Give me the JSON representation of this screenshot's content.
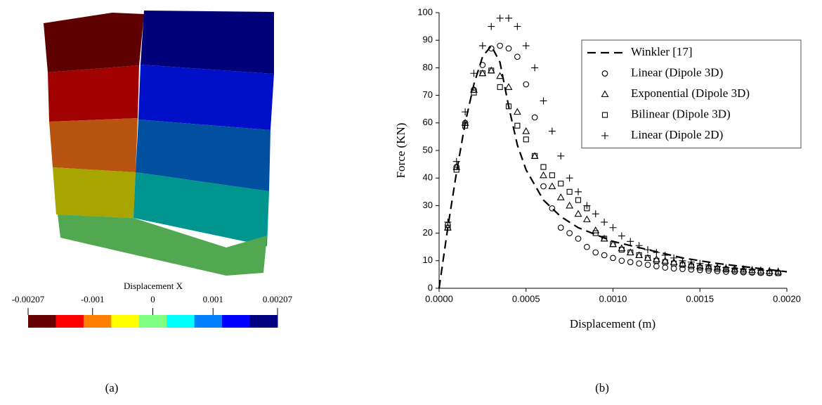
{
  "panel_a": {
    "colorbar": {
      "title": "Displacement X",
      "lim": [
        -0.00207,
        0.00207
      ],
      "ticks": [
        -0.00207,
        -0.001,
        0,
        0.001,
        0.00207
      ],
      "colors": [
        "#640000",
        "#ff0000",
        "#ff8000",
        "#ffff00",
        "#80ff80",
        "#00ffff",
        "#0080ff",
        "#0000ff",
        "#000080"
      ]
    }
  },
  "captions": [
    "(a)",
    "(b)"
  ],
  "chart_data": {
    "type": "scatter",
    "xlabel": "Displacement (m)",
    "ylabel": "Force (KN)",
    "xlim": [
      0,
      0.002
    ],
    "ylim": [
      0,
      100
    ],
    "xticks": [
      {
        "value": 0,
        "label": "0.0000"
      },
      {
        "value": 0.0005,
        "label": "0.0005"
      },
      {
        "value": 0.001,
        "label": "0.0010"
      },
      {
        "value": 0.0015,
        "label": "0.0015"
      },
      {
        "value": 0.002,
        "label": "0.0020"
      }
    ],
    "yticks": [
      0,
      10,
      20,
      30,
      40,
      50,
      60,
      70,
      80,
      90,
      100
    ],
    "legend": "upper right",
    "x": [
      5e-05,
      0.0001,
      0.00015,
      0.0002,
      0.00025,
      0.0003,
      0.00035,
      0.0004,
      0.00045,
      0.0005,
      0.00055,
      0.0006,
      0.00065,
      0.0007,
      0.00075,
      0.0008,
      0.00085,
      0.0009,
      0.00095,
      0.001,
      0.00105,
      0.0011,
      0.00115,
      0.0012,
      0.00125,
      0.0013,
      0.00135,
      0.0014,
      0.00145,
      0.0015,
      0.00155,
      0.0016,
      0.00165,
      0.0017,
      0.00175,
      0.0018,
      0.00185,
      0.0019,
      0.00195
    ],
    "series": [
      {
        "name": "Winkler [17]",
        "color": "#000000",
        "marker": "dashed-line",
        "x": [
          0,
          5e-05,
          0.0001,
          0.00015,
          0.0002,
          0.00025,
          0.0003,
          0.00035,
          0.0004,
          0.00045,
          0.0005,
          0.0006,
          0.0007,
          0.0008,
          0.001,
          0.0012,
          0.0014,
          0.0016,
          0.0018,
          0.002
        ],
        "values": [
          0,
          22,
          42,
          60,
          74,
          84,
          88,
          82,
          66,
          52,
          43,
          32,
          26,
          22,
          17,
          14,
          11,
          9,
          7.5,
          6
        ]
      },
      {
        "name": "Linear (Dipole 3D)",
        "color": "#000000",
        "marker": "circle",
        "values": [
          23,
          44,
          60,
          72,
          81,
          87,
          88,
          87,
          84,
          74,
          62,
          37,
          29,
          22,
          20,
          18,
          15,
          13,
          12,
          11,
          10,
          9.5,
          9,
          8.5,
          8,
          7.5,
          7.2,
          7,
          6.8,
          6.6,
          6.4,
          6.2,
          6,
          6,
          5.8,
          5.7,
          5.6,
          5.5,
          5.5
        ]
      },
      {
        "name": "Exponential (Dipole 3D)",
        "color": "#000000",
        "marker": "triangle",
        "values": [
          22,
          44,
          60,
          72,
          78,
          79,
          77,
          73,
          64,
          57,
          48,
          41,
          37,
          33,
          30,
          27,
          25,
          21,
          18,
          16,
          14.5,
          13,
          12,
          11,
          10.5,
          10,
          9.5,
          9,
          8.5,
          8,
          7.8,
          7.5,
          7.2,
          7,
          6.8,
          6.6,
          6.4,
          6.2,
          6
        ]
      },
      {
        "name": "Bilinear (Dipole 3D)",
        "color": "#000000",
        "marker": "square",
        "values": [
          22,
          43,
          59,
          71,
          78,
          79,
          73,
          66,
          59,
          54,
          48,
          44,
          41,
          38,
          35,
          32,
          29,
          20,
          18,
          16,
          14,
          13,
          12,
          11,
          10,
          9.5,
          9,
          8.5,
          8,
          7.5,
          7.2,
          7,
          6.8,
          6.5,
          6.2,
          6,
          5.8,
          5.6,
          5.5
        ]
      },
      {
        "name": "Linear (Dipole 2D)",
        "color": "#000000",
        "marker": "plus",
        "values": [
          24,
          46,
          64,
          78,
          88,
          95,
          98,
          98,
          95,
          88,
          80,
          68,
          57,
          48,
          40,
          35,
          30,
          27,
          24,
          22,
          19,
          17,
          15.5,
          14,
          13,
          12,
          11,
          10,
          9.5,
          9,
          8.5,
          8,
          7.5,
          7.2,
          7,
          6.8,
          6.6,
          6.4,
          6.2
        ]
      }
    ]
  }
}
